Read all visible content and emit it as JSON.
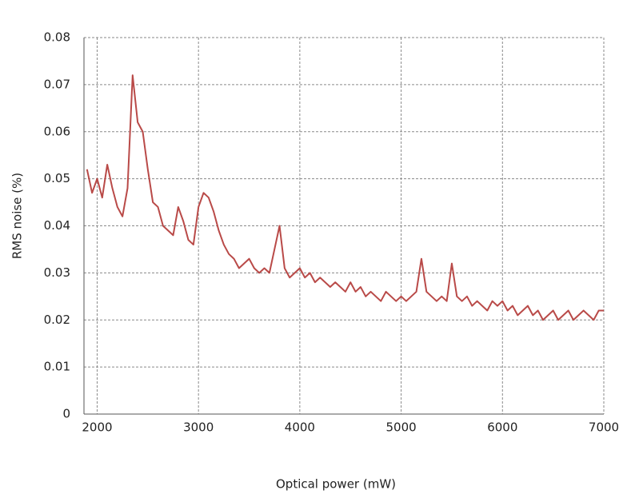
{
  "chart_data": {
    "type": "line",
    "x_label": "Optical power (mW)",
    "y_label": "RMS noise (%)",
    "x": [
      1900,
      1950,
      2000,
      2050,
      2100,
      2150,
      2200,
      2250,
      2300,
      2350,
      2400,
      2450,
      2500,
      2550,
      2600,
      2650,
      2700,
      2750,
      2800,
      2850,
      2900,
      2950,
      3000,
      3050,
      3100,
      3150,
      3200,
      3250,
      3300,
      3350,
      3400,
      3450,
      3500,
      3550,
      3600,
      3650,
      3700,
      3750,
      3800,
      3850,
      3900,
      3950,
      4000,
      4050,
      4100,
      4150,
      4200,
      4250,
      4300,
      4350,
      4400,
      4450,
      4500,
      4550,
      4600,
      4650,
      4700,
      4750,
      4800,
      4850,
      4900,
      4950,
      5000,
      5050,
      5100,
      5150,
      5200,
      5250,
      5300,
      5350,
      5400,
      5450,
      5500,
      5550,
      5600,
      5650,
      5700,
      5750,
      5800,
      5850,
      5900,
      5950,
      6000,
      6050,
      6100,
      6150,
      6200,
      6250,
      6300,
      6350,
      6400,
      6450,
      6500,
      6550,
      6600,
      6650,
      6700,
      6750,
      6800,
      6850,
      6900,
      6950,
      7000
    ],
    "series": [
      {
        "color": "#b94a48",
        "values": [
          0.052,
          0.047,
          0.05,
          0.046,
          0.053,
          0.048,
          0.044,
          0.042,
          0.048,
          0.072,
          0.062,
          0.06,
          0.052,
          0.045,
          0.044,
          0.04,
          0.039,
          0.038,
          0.044,
          0.041,
          0.037,
          0.036,
          0.044,
          0.047,
          0.046,
          0.043,
          0.039,
          0.036,
          0.034,
          0.033,
          0.031,
          0.032,
          0.033,
          0.031,
          0.03,
          0.031,
          0.03,
          0.035,
          0.04,
          0.031,
          0.029,
          0.03,
          0.031,
          0.029,
          0.03,
          0.028,
          0.029,
          0.028,
          0.027,
          0.028,
          0.027,
          0.026,
          0.028,
          0.026,
          0.027,
          0.025,
          0.026,
          0.025,
          0.024,
          0.026,
          0.025,
          0.024,
          0.025,
          0.024,
          0.025,
          0.026,
          0.033,
          0.026,
          0.025,
          0.024,
          0.025,
          0.024,
          0.032,
          0.025,
          0.024,
          0.025,
          0.023,
          0.024,
          0.023,
          0.022,
          0.024,
          0.023,
          0.024,
          0.022,
          0.023,
          0.021,
          0.022,
          0.023,
          0.021,
          0.022,
          0.02,
          0.021,
          0.022,
          0.02,
          0.021,
          0.022,
          0.02,
          0.021,
          0.022,
          0.021,
          0.02,
          0.022,
          0.022
        ]
      }
    ],
    "xlim": [
      1870,
      7000
    ],
    "ylim": [
      0,
      0.08
    ],
    "xticks": [
      2000,
      3000,
      4000,
      5000,
      6000,
      7000
    ],
    "yticks": [
      0,
      0.01,
      0.02,
      0.03,
      0.04,
      0.05,
      0.06,
      0.07,
      0.08
    ],
    "grid": true
  }
}
